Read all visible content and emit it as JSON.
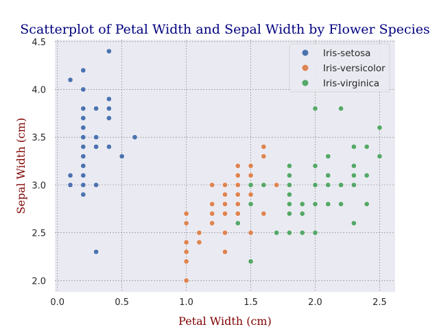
{
  "chart_data": {
    "type": "scatter",
    "title": "Scatterplot of Petal Width and Sepal Width by Flower Species",
    "xlabel": "Petal Width (cm)",
    "ylabel": "Sepal Width (cm)",
    "xlim": [
      -0.02,
      2.62
    ],
    "ylim": [
      1.88,
      4.52
    ],
    "xticks": [
      "0.0",
      "0.5",
      "1.0",
      "1.5",
      "2.0",
      "2.5"
    ],
    "xtick_values": [
      0.0,
      0.5,
      1.0,
      1.5,
      2.0,
      2.5
    ],
    "yticks": [
      "2.0",
      "2.5",
      "3.0",
      "3.5",
      "4.0",
      "4.5"
    ],
    "ytick_values": [
      2.0,
      2.5,
      3.0,
      3.5,
      4.0,
      4.5
    ],
    "grid": true,
    "legend_position": "top-right",
    "colors": {
      "title": "#000080",
      "axis_labels": "#800000",
      "plot_background": "#eaeaf2",
      "grid": "#808080"
    },
    "series": [
      {
        "name": "Iris-setosa",
        "color": "#4c72b0",
        "points": [
          [
            0.1,
            4.1
          ],
          [
            0.1,
            3.1
          ],
          [
            0.1,
            3.0
          ],
          [
            0.2,
            4.2
          ],
          [
            0.2,
            4.0
          ],
          [
            0.2,
            3.8
          ],
          [
            0.2,
            3.7
          ],
          [
            0.2,
            3.6
          ],
          [
            0.2,
            3.5
          ],
          [
            0.2,
            3.4
          ],
          [
            0.2,
            3.3
          ],
          [
            0.2,
            3.2
          ],
          [
            0.2,
            3.1
          ],
          [
            0.2,
            3.0
          ],
          [
            0.2,
            2.9
          ],
          [
            0.3,
            3.8
          ],
          [
            0.3,
            3.5
          ],
          [
            0.3,
            3.4
          ],
          [
            0.3,
            3.0
          ],
          [
            0.3,
            2.3
          ],
          [
            0.4,
            4.4
          ],
          [
            0.4,
            3.9
          ],
          [
            0.4,
            3.8
          ],
          [
            0.4,
            3.7
          ],
          [
            0.4,
            3.4
          ],
          [
            0.5,
            3.3
          ],
          [
            0.6,
            3.5
          ]
        ]
      },
      {
        "name": "Iris-versicolor",
        "color": "#dd8452",
        "points": [
          [
            1.0,
            2.7
          ],
          [
            1.0,
            2.6
          ],
          [
            1.0,
            2.4
          ],
          [
            1.0,
            2.3
          ],
          [
            1.0,
            2.2
          ],
          [
            1.0,
            2.0
          ],
          [
            1.1,
            2.5
          ],
          [
            1.1,
            2.4
          ],
          [
            1.2,
            3.0
          ],
          [
            1.2,
            2.8
          ],
          [
            1.2,
            2.7
          ],
          [
            1.2,
            2.6
          ],
          [
            1.3,
            3.0
          ],
          [
            1.3,
            2.9
          ],
          [
            1.3,
            2.8
          ],
          [
            1.3,
            2.7
          ],
          [
            1.3,
            2.5
          ],
          [
            1.3,
            2.3
          ],
          [
            1.4,
            3.2
          ],
          [
            1.4,
            3.1
          ],
          [
            1.4,
            3.0
          ],
          [
            1.4,
            2.9
          ],
          [
            1.4,
            2.8
          ],
          [
            1.4,
            2.7
          ],
          [
            1.5,
            3.2
          ],
          [
            1.5,
            3.1
          ],
          [
            1.5,
            3.0
          ],
          [
            1.5,
            2.9
          ],
          [
            1.5,
            2.5
          ],
          [
            1.6,
            3.4
          ],
          [
            1.6,
            3.3
          ],
          [
            1.6,
            2.7
          ],
          [
            1.7,
            3.0
          ]
        ]
      },
      {
        "name": "Iris-virginica",
        "color": "#55a868",
        "points": [
          [
            1.4,
            2.6
          ],
          [
            1.5,
            3.0
          ],
          [
            1.5,
            2.8
          ],
          [
            1.5,
            2.2
          ],
          [
            1.6,
            3.0
          ],
          [
            1.7,
            2.5
          ],
          [
            1.8,
            3.2
          ],
          [
            1.8,
            3.1
          ],
          [
            1.8,
            3.0
          ],
          [
            1.8,
            2.9
          ],
          [
            1.8,
            2.8
          ],
          [
            1.8,
            2.7
          ],
          [
            1.8,
            2.5
          ],
          [
            1.9,
            2.8
          ],
          [
            1.9,
            2.7
          ],
          [
            1.9,
            2.5
          ],
          [
            2.0,
            3.8
          ],
          [
            2.0,
            3.2
          ],
          [
            2.0,
            3.0
          ],
          [
            2.0,
            2.8
          ],
          [
            2.0,
            2.5
          ],
          [
            2.1,
            3.3
          ],
          [
            2.1,
            3.1
          ],
          [
            2.1,
            3.0
          ],
          [
            2.1,
            2.8
          ],
          [
            2.2,
            3.8
          ],
          [
            2.2,
            3.0
          ],
          [
            2.2,
            2.8
          ],
          [
            2.3,
            3.4
          ],
          [
            2.3,
            3.2
          ],
          [
            2.3,
            3.1
          ],
          [
            2.3,
            3.0
          ],
          [
            2.3,
            2.6
          ],
          [
            2.4,
            3.4
          ],
          [
            2.4,
            3.1
          ],
          [
            2.4,
            2.8
          ],
          [
            2.5,
            3.6
          ],
          [
            2.5,
            3.3
          ]
        ]
      }
    ]
  }
}
